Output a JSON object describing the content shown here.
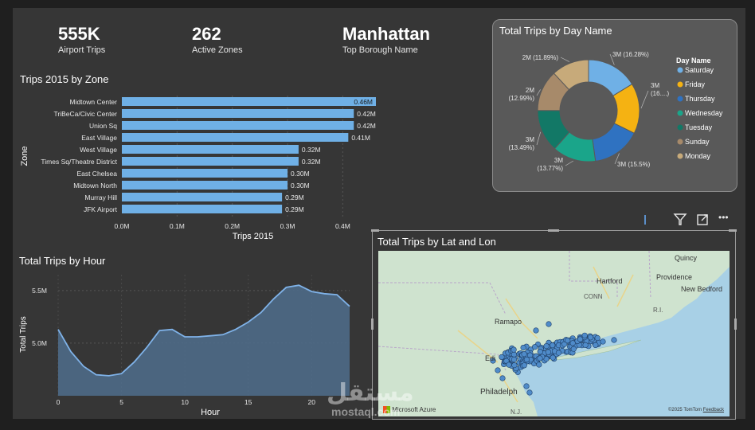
{
  "kpis": [
    {
      "value": "555K",
      "label": "Airport Trips"
    },
    {
      "value": "262",
      "label": "Active Zones"
    },
    {
      "value": "Manhattan",
      "label": "Top Borough Name"
    }
  ],
  "zone_chart": {
    "title": "Trips 2015 by Zone",
    "xlabel": "Trips 2015",
    "ylabel": "Zone",
    "x_ticks": [
      "0.0M",
      "0.1M",
      "0.2M",
      "0.3M",
      "0.4M"
    ],
    "xlim": [
      0,
      0.46
    ]
  },
  "hour_chart": {
    "title": "Total Trips by Hour",
    "xlabel": "Hour",
    "ylabel": "Total Trips",
    "y_ticks": [
      "5.5M",
      "5.0M"
    ],
    "x_ticks": [
      "0",
      "5",
      "10",
      "15",
      "20"
    ]
  },
  "donut_chart": {
    "title": "Total Trips by Day Name",
    "legend_title": "Day Name"
  },
  "map_visual": {
    "title": "Total Trips by Lat and Lon",
    "places": [
      "Quincy",
      "Hartford",
      "Providence",
      "New Bedford",
      "CONN",
      "R.I.",
      "Ramapo",
      "Edi",
      "Philadelph",
      "N.J."
    ],
    "logo_text": "Microsoft Azure",
    "copyright": "©2025 TomTom",
    "feedback": "Feedback"
  },
  "toolbar": {
    "filter_icon": "filter-icon",
    "focus_icon": "expand-icon",
    "more_icon": "more-options-icon",
    "more_label": "•••"
  },
  "watermark": {
    "line1": "مستقل",
    "line2": "mostaql.com"
  },
  "chart_data": [
    {
      "type": "bar",
      "title": "Trips 2015 by Zone",
      "xlabel": "Trips 2015",
      "ylabel": "Zone",
      "categories": [
        "Midtown Center",
        "TriBeCa/Civic Center",
        "Union Sq",
        "East Village",
        "West Village",
        "Times Sq/Theatre District",
        "East Chelsea",
        "Midtown North",
        "Murray Hill",
        "JFK Airport"
      ],
      "values": [
        0.46,
        0.42,
        0.42,
        0.41,
        0.32,
        0.32,
        0.3,
        0.3,
        0.29,
        0.29
      ],
      "labels": [
        "0.46M",
        "0.42M",
        "0.42M",
        "0.41M",
        "0.32M",
        "0.32M",
        "0.30M",
        "0.30M",
        "0.29M",
        "0.29M"
      ],
      "xlim": [
        0,
        0.46
      ],
      "color": "#6fb0e6"
    },
    {
      "type": "area",
      "title": "Total Trips by Hour",
      "xlabel": "Hour",
      "ylabel": "Total Trips",
      "x": [
        0,
        1,
        2,
        3,
        4,
        5,
        6,
        7,
        8,
        9,
        10,
        11,
        12,
        13,
        14,
        15,
        16,
        17,
        18,
        19,
        20,
        21,
        22,
        23
      ],
      "values": [
        5.13,
        4.92,
        4.78,
        4.7,
        4.69,
        4.71,
        4.82,
        4.96,
        5.12,
        5.13,
        5.06,
        5.06,
        5.07,
        5.08,
        5.13,
        5.2,
        5.29,
        5.42,
        5.53,
        5.55,
        5.49,
        5.47,
        5.46,
        5.35
      ],
      "ylim": [
        4.5,
        5.65
      ],
      "y_ticks": [
        5.5,
        5.0
      ],
      "color": "#5b8fc9"
    },
    {
      "type": "pie",
      "title": "Total Trips by Day Name",
      "legend_title": "Day Name",
      "legend_position": "right",
      "categories": [
        "Saturday",
        "Friday",
        "Thursday",
        "Wednesday",
        "Tuesday",
        "Sunday",
        "Monday"
      ],
      "values": [
        16.28,
        16.0,
        15.5,
        13.77,
        13.49,
        12.99,
        11.89
      ],
      "labels": [
        "3M (16.28%)",
        "3M (16....)",
        "3M (15.5%)",
        "3M (13.77%)",
        "3M (13.49%)",
        "2M (12.99%)",
        "2M (11.89%)"
      ],
      "colors": [
        "#6fb0e6",
        "#f5b212",
        "#2f72c1",
        "#1aa58a",
        "#127866",
        "#a78a6a",
        "#c7aa7a"
      ]
    }
  ]
}
